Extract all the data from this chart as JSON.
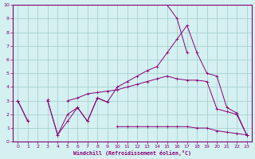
{
  "xlabel": "Windchill (Refroidissement éolien,°C)",
  "x": [
    0,
    1,
    2,
    3,
    4,
    5,
    6,
    7,
    8,
    9,
    10,
    11,
    12,
    13,
    14,
    15,
    16,
    17,
    18,
    19,
    20,
    21,
    22,
    23
  ],
  "line_spike": [
    null,
    null,
    null,
    null,
    null,
    null,
    null,
    null,
    null,
    null,
    null,
    null,
    null,
    null,
    null,
    10.0,
    9.0,
    6.5,
    null,
    null,
    null,
    null,
    null,
    null
  ],
  "line_main": [
    3.0,
    1.5,
    null,
    3.0,
    0.5,
    2.0,
    2.5,
    1.5,
    3.2,
    2.9,
    4.0,
    4.4,
    4.8,
    5.2,
    5.5,
    6.5,
    7.5,
    8.5,
    6.5,
    5.0,
    4.8,
    2.5,
    2.1,
    0.5
  ],
  "line_upper": [
    3.0,
    null,
    null,
    3.1,
    null,
    3.0,
    3.2,
    3.5,
    3.6,
    3.7,
    3.8,
    4.0,
    4.2,
    4.4,
    4.6,
    4.8,
    4.6,
    4.5,
    4.5,
    4.4,
    2.4,
    2.2,
    2.0,
    0.5
  ],
  "line_lower": [
    null,
    null,
    null,
    null,
    null,
    null,
    null,
    null,
    null,
    null,
    1.1,
    1.1,
    1.1,
    1.1,
    1.1,
    1.1,
    1.1,
    1.1,
    1.0,
    1.0,
    0.8,
    0.7,
    0.6,
    0.5
  ],
  "line_zigzag": [
    3.0,
    1.5,
    null,
    3.0,
    0.5,
    1.5,
    2.5,
    1.5,
    3.2,
    2.9,
    null,
    null,
    null,
    null,
    null,
    null,
    null,
    null,
    null,
    null,
    null,
    null,
    null,
    null
  ],
  "background_color": "#d4f0f0",
  "grid_color": "#a0cccc",
  "line_color": "#880077",
  "ylim": [
    0,
    10
  ],
  "xlim": [
    -0.5,
    23.5
  ],
  "yticks": [
    0,
    1,
    2,
    3,
    4,
    5,
    6,
    7,
    8,
    9,
    10
  ],
  "xticks": [
    0,
    1,
    2,
    3,
    4,
    5,
    6,
    7,
    8,
    9,
    10,
    11,
    12,
    13,
    14,
    15,
    16,
    17,
    18,
    19,
    20,
    21,
    22,
    23
  ]
}
